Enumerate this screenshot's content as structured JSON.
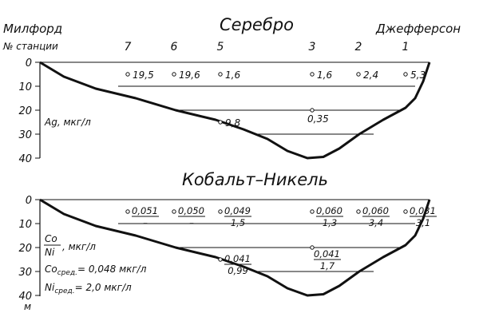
{
  "labels": {
    "left_place": "Милфорд",
    "right_place": "Джефферсон",
    "station_header": "№ станции",
    "depth_unit": "м"
  },
  "stations": [
    "7",
    "6",
    "5",
    "3",
    "2",
    "1"
  ],
  "silver": {
    "title": "Серебро",
    "unit_label": "Ag, мкг/л",
    "depth_ticks": [
      "0",
      "10",
      "20",
      "30",
      "40"
    ],
    "samples": [
      {
        "station": "7",
        "depth": 5,
        "value": "19,5"
      },
      {
        "station": "6",
        "depth": 5,
        "value": "19,6"
      },
      {
        "station": "5",
        "depth": 5,
        "value": "1,6"
      },
      {
        "station": "3",
        "depth": 5,
        "value": "1,6"
      },
      {
        "station": "2",
        "depth": 5,
        "value": "2,4"
      },
      {
        "station": "1",
        "depth": 5,
        "value": "5,3"
      },
      {
        "station": "5",
        "depth": 25,
        "value": "9,8"
      },
      {
        "station": "3",
        "depth": 20,
        "value": "0,35"
      }
    ]
  },
  "cobalt_nickel": {
    "title": "Кобальт–Никель",
    "ratio_top": "Co",
    "ratio_bottom": "Ni",
    "ratio_unit": ", мкг/л",
    "co_avg": "Co",
    "co_avg_sub": "сред.",
    "co_avg_value": "= 0,048 мкг/л",
    "ni_avg": "Ni",
    "ni_avg_sub": "сред.",
    "ni_avg_value": "= 2,0 мкг/л",
    "depth_ticks": [
      "0",
      "10",
      "20",
      "30",
      "40"
    ],
    "samples": [
      {
        "station": "7",
        "depth": 5,
        "co": "0,051",
        "ni": "–"
      },
      {
        "station": "6",
        "depth": 5,
        "co": "0,050",
        "ni": "–"
      },
      {
        "station": "5",
        "depth": 5,
        "co": "0,049",
        "ni": "1,5"
      },
      {
        "station": "3",
        "depth": 5,
        "co": "0,060",
        "ni": "1,3"
      },
      {
        "station": "2",
        "depth": 5,
        "co": "0,060",
        "ni": "3,4"
      },
      {
        "station": "1",
        "depth": 5,
        "co": "0,031",
        "ni": "3,1"
      },
      {
        "station": "5",
        "depth": 25,
        "co": "0,041",
        "ni": "0,99"
      },
      {
        "station": "3",
        "depth": 20,
        "co": "0,041",
        "ni": "1,7"
      }
    ]
  }
}
